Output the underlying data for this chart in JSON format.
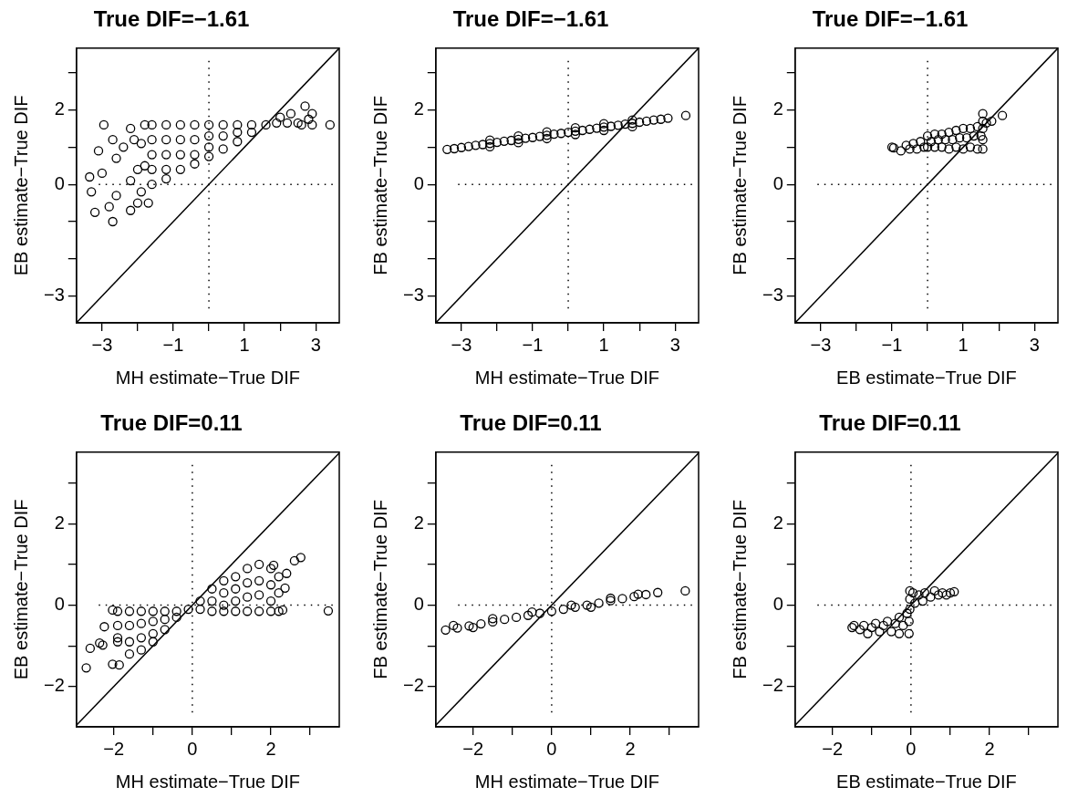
{
  "chart_data": [
    {
      "type": "scatter",
      "title": "True DIF=−1.61",
      "xlabel": "MH estimate−True DIF",
      "ylabel": "EB estimate−True DIF",
      "xlim": [
        -3.72,
        3.66
      ],
      "ylim": [
        -3.72,
        3.66
      ],
      "xticks": [
        {
          "value": -3,
          "label": "−3"
        },
        {
          "value": -2,
          "label": null
        },
        {
          "value": -1,
          "label": "−1"
        },
        {
          "value": 0,
          "label": null
        },
        {
          "value": 1,
          "label": "1"
        },
        {
          "value": 2,
          "label": null
        },
        {
          "value": 3,
          "label": "3"
        }
      ],
      "yticks": [
        {
          "value": -3,
          "label": "−3"
        },
        {
          "value": -2,
          "label": null
        },
        {
          "value": -1,
          "label": null
        },
        {
          "value": 0,
          "label": "0"
        },
        {
          "value": 1,
          "label": null
        },
        {
          "value": 2,
          "label": "2"
        },
        {
          "value": 3,
          "label": null
        }
      ],
      "marker": "circle",
      "ref_lines": [
        {
          "axis": "x",
          "value": 0,
          "line_style": "dotted",
          "color": "#000000"
        },
        {
          "axis": "y",
          "value": 0,
          "line_style": "dotted",
          "color": "#000000"
        }
      ],
      "series": [
        {
          "type": "scatter",
          "color": "#000000",
          "x": [
            -3.35,
            -3.3,
            -3.2,
            -3.1,
            -3.0,
            -2.95,
            -2.8,
            -2.7,
            -2.7,
            -2.6,
            -2.6,
            -2.4,
            -2.2,
            -2.2,
            -2.2,
            -2.1,
            -2.0,
            -2.0,
            -1.8,
            -1.7,
            -1.9,
            -1.8,
            -1.9,
            -1.6,
            -1.6,
            -1.6,
            -1.6,
            -1.6,
            -1.2,
            -1.2,
            -1.2,
            -1.2,
            -1.2,
            -0.8,
            -0.8,
            -0.8,
            -0.8,
            -0.4,
            -0.4,
            -0.4,
            -0.4,
            0,
            0,
            0,
            0,
            0.4,
            0.4,
            0.4,
            0.8,
            0.8,
            0.8,
            1.2,
            1.2,
            1.6,
            1.9,
            2.0,
            2.2,
            2.3,
            2.5,
            2.6,
            2.7,
            2.8,
            2.9,
            2.9,
            3.4
          ],
          "values": [
            0.2,
            -0.2,
            -0.75,
            0.9,
            0.3,
            1.6,
            -0.6,
            -1.0,
            1.2,
            0.7,
            -0.3,
            1.0,
            -0.7,
            0.1,
            1.5,
            1.2,
            -0.5,
            0.4,
            1.6,
            -0.5,
            1.1,
            0.5,
            -0.2,
            1.6,
            1.2,
            0.8,
            0.4,
            0.0,
            1.6,
            1.2,
            0.8,
            0.4,
            0.15,
            1.6,
            1.2,
            0.8,
            0.4,
            1.6,
            1.2,
            0.8,
            0.55,
            1.6,
            1.3,
            1.0,
            0.75,
            1.6,
            1.3,
            0.95,
            1.6,
            1.4,
            1.15,
            1.6,
            1.4,
            1.6,
            1.65,
            1.8,
            1.65,
            1.9,
            1.65,
            1.6,
            2.1,
            1.75,
            1.9,
            1.6,
            1.6
          ]
        },
        {
          "type": "line",
          "color": "#000000",
          "marker": "none",
          "x": [
            -3.72,
            3.66
          ],
          "values": [
            -3.72,
            3.66
          ]
        }
      ]
    },
    {
      "type": "scatter",
      "title": "True DIF=−1.61",
      "xlabel": "MH estimate−True DIF",
      "ylabel": "FB estimate−True DIF",
      "xlim": [
        -3.72,
        3.66
      ],
      "ylim": [
        -3.72,
        3.66
      ],
      "xticks": [
        {
          "value": -3,
          "label": "−3"
        },
        {
          "value": -2,
          "label": null
        },
        {
          "value": -1,
          "label": "−1"
        },
        {
          "value": 0,
          "label": null
        },
        {
          "value": 1,
          "label": "1"
        },
        {
          "value": 2,
          "label": null
        },
        {
          "value": 3,
          "label": "3"
        }
      ],
      "yticks": [
        {
          "value": -3,
          "label": "−3"
        },
        {
          "value": -2,
          "label": null
        },
        {
          "value": -1,
          "label": null
        },
        {
          "value": 0,
          "label": "0"
        },
        {
          "value": 1,
          "label": null
        },
        {
          "value": 2,
          "label": "2"
        },
        {
          "value": 3,
          "label": null
        }
      ],
      "marker": "circle",
      "ref_lines": [
        {
          "axis": "x",
          "value": 0,
          "line_style": "dotted",
          "color": "#000000"
        },
        {
          "axis": "y",
          "value": 0,
          "line_style": "dotted",
          "color": "#000000"
        }
      ],
      "series": [
        {
          "type": "scatter",
          "color": "#000000",
          "x": [
            -3.4,
            -3.2,
            -3.0,
            -2.8,
            -2.6,
            -2.4,
            -2.2,
            -2.0,
            -1.8,
            -1.6,
            -1.4,
            -1.2,
            -1.0,
            -0.8,
            -0.6,
            -0.4,
            -0.2,
            0,
            0.2,
            0.4,
            0.6,
            0.8,
            1.0,
            1.2,
            1.4,
            1.6,
            1.8,
            2.0,
            2.2,
            2.4,
            2.6,
            2.8,
            3.3,
            -2.2,
            -2.2,
            -1.4,
            -1.4,
            -0.6,
            -0.6,
            0.2,
            0.2,
            1.0,
            1.0,
            1.8,
            1.8
          ],
          "values": [
            0.94,
            0.96,
            0.99,
            1.02,
            1.05,
            1.07,
            1.1,
            1.13,
            1.16,
            1.18,
            1.21,
            1.24,
            1.26,
            1.29,
            1.32,
            1.35,
            1.37,
            1.4,
            1.43,
            1.45,
            1.48,
            1.51,
            1.54,
            1.56,
            1.59,
            1.62,
            1.64,
            1.67,
            1.7,
            1.73,
            1.75,
            1.78,
            1.85,
            1.19,
            1.01,
            1.3,
            1.12,
            1.41,
            1.23,
            1.52,
            1.34,
            1.63,
            1.45,
            1.73,
            1.55
          ]
        },
        {
          "type": "line",
          "color": "#000000",
          "marker": "none",
          "x": [
            -3.72,
            3.66
          ],
          "values": [
            -3.72,
            3.66
          ]
        }
      ]
    },
    {
      "type": "scatter",
      "title": "True DIF=−1.61",
      "xlabel": "EB estimate−True DIF",
      "ylabel": "FB estimate−True DIF",
      "xlim": [
        -3.72,
        3.66
      ],
      "ylim": [
        -3.72,
        3.66
      ],
      "xticks": [
        {
          "value": -3,
          "label": "−3"
        },
        {
          "value": -2,
          "label": null
        },
        {
          "value": -1,
          "label": "−1"
        },
        {
          "value": 0,
          "label": null
        },
        {
          "value": 1,
          "label": "1"
        },
        {
          "value": 2,
          "label": null
        },
        {
          "value": 3,
          "label": "3"
        }
      ],
      "yticks": [
        {
          "value": -3,
          "label": "−3"
        },
        {
          "value": -2,
          "label": null
        },
        {
          "value": -1,
          "label": null
        },
        {
          "value": 0,
          "label": "0"
        },
        {
          "value": 1,
          "label": null
        },
        {
          "value": 2,
          "label": "2"
        },
        {
          "value": 3,
          "label": null
        }
      ],
      "marker": "circle",
      "ref_lines": [
        {
          "axis": "x",
          "value": 0,
          "line_style": "dotted",
          "color": "#000000"
        },
        {
          "axis": "y",
          "value": 0,
          "line_style": "dotted",
          "color": "#000000"
        }
      ],
      "series": [
        {
          "type": "scatter",
          "color": "#000000",
          "x": [
            -1.0,
            -0.95,
            -0.75,
            -0.6,
            -0.5,
            -0.4,
            -0.3,
            -0.2,
            -0.1,
            0,
            0,
            0.1,
            0.2,
            0.2,
            0.3,
            0.4,
            0.4,
            0.5,
            0.6,
            0.6,
            0.7,
            0.8,
            0.8,
            0.9,
            1.0,
            1.0,
            1.1,
            1.2,
            1.2,
            1.3,
            1.4,
            1.4,
            1.5,
            1.55,
            1.55,
            1.55,
            1.55,
            1.55,
            1.65,
            1.8,
            2.1
          ],
          "values": [
            1.0,
            0.98,
            0.9,
            1.05,
            0.95,
            1.1,
            0.95,
            1.15,
            1.0,
            1.3,
            1.0,
            1.15,
            1.35,
            1.0,
            1.2,
            1.35,
            1.0,
            1.2,
            1.4,
            0.95,
            1.2,
            1.45,
            1.0,
            1.25,
            1.5,
            0.95,
            1.25,
            1.5,
            1.0,
            1.3,
            1.55,
            0.95,
            1.3,
            1.9,
            1.7,
            1.5,
            1.2,
            0.95,
            1.65,
            1.7,
            1.85
          ]
        },
        {
          "type": "line",
          "color": "#000000",
          "marker": "none",
          "x": [
            -3.72,
            3.66
          ],
          "values": [
            -3.72,
            3.66
          ]
        }
      ]
    },
    {
      "type": "scatter",
      "title": "True DIF=0.11",
      "xlabel": "MH estimate−True DIF",
      "ylabel": "EB estimate−True DIF",
      "xlim": [
        -2.95,
        3.74
      ],
      "ylim": [
        -2.99,
        3.76
      ],
      "xticks": [
        {
          "value": -2,
          "label": "−2"
        },
        {
          "value": -1,
          "label": null
        },
        {
          "value": 0,
          "label": "0"
        },
        {
          "value": 1,
          "label": null
        },
        {
          "value": 2,
          "label": "2"
        },
        {
          "value": 3,
          "label": null
        }
      ],
      "yticks": [
        {
          "value": -2,
          "label": "−2"
        },
        {
          "value": -1,
          "label": null
        },
        {
          "value": 0,
          "label": "0"
        },
        {
          "value": 1,
          "label": null
        },
        {
          "value": 2,
          "label": "2"
        },
        {
          "value": 3,
          "label": null
        }
      ],
      "marker": "circle",
      "ref_lines": [
        {
          "axis": "x",
          "value": 0,
          "line_style": "dotted",
          "color": "#000000"
        },
        {
          "axis": "y",
          "value": 0,
          "line_style": "dotted",
          "color": "#000000"
        }
      ],
      "series": [
        {
          "type": "scatter",
          "color": "#000000",
          "x": [
            -2.7,
            -2.6,
            -2.28,
            -2.36,
            -2.24,
            -2.03,
            -1.86,
            -2.03,
            -1.9,
            3.46,
            2.76,
            2.6,
            2.4,
            2.3,
            2.36,
            2.07,
            -1.9,
            -1.9,
            -1.9,
            -1.6,
            -1.6,
            -1.6,
            -1.6,
            -1.3,
            -1.3,
            -1.3,
            -1.3,
            -1.0,
            -1.0,
            -1.0,
            -1.0,
            -0.7,
            -0.7,
            -0.7,
            -0.4,
            -0.4,
            -0.1,
            0.2,
            0.2,
            0.5,
            0.5,
            0.5,
            0.8,
            0.8,
            0.8,
            0.8,
            1.1,
            1.1,
            1.1,
            1.1,
            1.4,
            1.4,
            1.4,
            1.4,
            1.7,
            1.7,
            1.7,
            1.7,
            2.0,
            2.0,
            2.0,
            2.0,
            2.2,
            2.2,
            2.2
          ],
          "values": [
            -1.54,
            -1.06,
            -0.98,
            -0.93,
            -0.53,
            -1.45,
            -1.47,
            -0.12,
            -0.8,
            -0.14,
            1.17,
            1.09,
            0.78,
            -0.12,
            0.42,
            0.98,
            -0.15,
            -0.5,
            -0.9,
            -0.15,
            -0.5,
            -0.9,
            -1.2,
            -0.15,
            -0.45,
            -0.8,
            -1.1,
            -0.15,
            -0.4,
            -0.7,
            -0.9,
            -0.15,
            -0.35,
            -0.6,
            -0.15,
            -0.3,
            -0.1,
            0.1,
            -0.1,
            0.4,
            0.1,
            -0.15,
            0.6,
            0.3,
            0,
            -0.15,
            0.7,
            0.4,
            0.1,
            -0.15,
            0.9,
            0.55,
            0.2,
            -0.15,
            1.0,
            0.6,
            0.25,
            -0.15,
            0.9,
            0.5,
            0.1,
            -0.15,
            0.7,
            0.3,
            -0.15
          ]
        },
        {
          "type": "line",
          "color": "#000000",
          "marker": "none",
          "x": [
            -2.95,
            3.74
          ],
          "values": [
            -2.95,
            3.74
          ]
        }
      ]
    },
    {
      "type": "scatter",
      "title": "True DIF=0.11",
      "xlabel": "MH estimate−True DIF",
      "ylabel": "FB estimate−True DIF",
      "xlim": [
        -2.95,
        3.74
      ],
      "ylim": [
        -2.99,
        3.76
      ],
      "xticks": [
        {
          "value": -2,
          "label": "−2"
        },
        {
          "value": -1,
          "label": null
        },
        {
          "value": 0,
          "label": "0"
        },
        {
          "value": 1,
          "label": null
        },
        {
          "value": 2,
          "label": "2"
        },
        {
          "value": 3,
          "label": null
        }
      ],
      "yticks": [
        {
          "value": -2,
          "label": "−2"
        },
        {
          "value": -1,
          "label": null
        },
        {
          "value": 0,
          "label": "0"
        },
        {
          "value": 1,
          "label": null
        },
        {
          "value": 2,
          "label": "2"
        },
        {
          "value": 3,
          "label": null
        }
      ],
      "marker": "circle",
      "ref_lines": [
        {
          "axis": "x",
          "value": 0,
          "line_style": "dotted",
          "color": "#000000"
        },
        {
          "axis": "y",
          "value": 0,
          "line_style": "dotted",
          "color": "#000000"
        }
      ],
      "series": [
        {
          "type": "scatter",
          "color": "#000000",
          "x": [
            -2.7,
            -2.4,
            -2.1,
            -1.8,
            -1.5,
            -1.2,
            -0.9,
            -0.6,
            -0.3,
            0,
            0.3,
            0.6,
            0.9,
            1.2,
            1.5,
            1.8,
            2.1,
            2.4,
            2.7,
            3.4,
            -2.5,
            -1.5,
            -0.5,
            0.5,
            1.5,
            2.2,
            -2.0,
            1.0
          ],
          "values": [
            -0.61,
            -0.56,
            -0.51,
            -0.46,
            -0.41,
            -0.35,
            -0.3,
            -0.25,
            -0.2,
            -0.15,
            -0.1,
            -0.05,
            0.0,
            0.05,
            0.11,
            0.16,
            0.21,
            0.26,
            0.31,
            0.35,
            -0.5,
            -0.33,
            -0.17,
            0.0,
            0.17,
            0.27,
            -0.55,
            -0.05
          ]
        },
        {
          "type": "line",
          "color": "#000000",
          "marker": "none",
          "x": [
            -2.95,
            3.74
          ],
          "values": [
            -2.95,
            3.74
          ]
        }
      ]
    },
    {
      "type": "scatter",
      "title": "True DIF=0.11",
      "xlabel": "EB estimate−True DIF",
      "ylabel": "FB estimate−True DIF",
      "xlim": [
        -2.95,
        3.74
      ],
      "ylim": [
        -2.99,
        3.76
      ],
      "xticks": [
        {
          "value": -2,
          "label": "−2"
        },
        {
          "value": -1,
          "label": null
        },
        {
          "value": 0,
          "label": "0"
        },
        {
          "value": 1,
          "label": null
        },
        {
          "value": 2,
          "label": "2"
        },
        {
          "value": 3,
          "label": null
        }
      ],
      "yticks": [
        {
          "value": -2,
          "label": "−2"
        },
        {
          "value": -1,
          "label": null
        },
        {
          "value": 0,
          "label": "0"
        },
        {
          "value": 1,
          "label": null
        },
        {
          "value": 2,
          "label": "2"
        },
        {
          "value": 3,
          "label": null
        }
      ],
      "marker": "circle",
      "ref_lines": [
        {
          "axis": "x",
          "value": 0,
          "line_style": "dotted",
          "color": "#000000"
        },
        {
          "axis": "y",
          "value": 0,
          "line_style": "dotted",
          "color": "#000000"
        }
      ],
      "series": [
        {
          "type": "scatter",
          "color": "#000000",
          "x": [
            -1.5,
            -1.45,
            -1.3,
            -1.2,
            -1.1,
            -1.0,
            -0.9,
            -0.8,
            -0.7,
            -0.6,
            -0.5,
            -0.4,
            -0.3,
            -0.3,
            -0.2,
            -0.1,
            -0.05,
            -0.05,
            -0.03,
            -0.03,
            -0.03,
            0.05,
            0.1,
            0.2,
            0.3,
            0.35,
            0.5,
            0.6,
            0.7,
            0.8,
            0.9,
            1.0,
            1.1
          ],
          "values": [
            -0.55,
            -0.5,
            -0.6,
            -0.5,
            -0.7,
            -0.55,
            -0.45,
            -0.65,
            -0.5,
            -0.4,
            -0.65,
            -0.45,
            -0.7,
            -0.3,
            -0.5,
            -0.2,
            -0.7,
            -0.4,
            -0.1,
            0.15,
            0.35,
            0.3,
            0.05,
            0.25,
            0.1,
            0.3,
            0.2,
            0.35,
            0.25,
            0.3,
            0.25,
            0.3,
            0.33
          ]
        },
        {
          "type": "line",
          "color": "#000000",
          "marker": "none",
          "x": [
            -2.95,
            3.74
          ],
          "values": [
            -2.95,
            3.74
          ]
        }
      ]
    }
  ]
}
